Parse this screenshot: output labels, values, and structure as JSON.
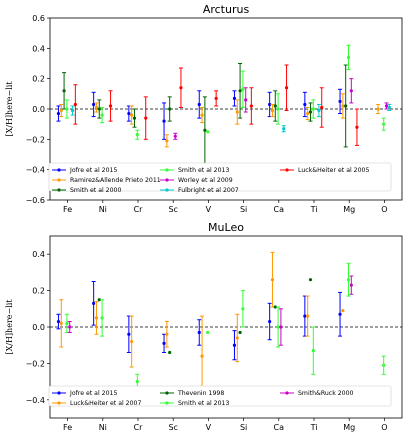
{
  "chart_data": [
    {
      "type": "scatter",
      "title": "Arcturus",
      "ylabel": "[X/H]here−lit",
      "categories": [
        "Fe",
        "Ni",
        "Cr",
        "Sc",
        "V",
        "Si",
        "Ca",
        "Ti",
        "Mg",
        "O"
      ],
      "ylim": [
        -0.6,
        0.6
      ],
      "yticks": [
        "0.6",
        "0.4",
        "0.2",
        "0.0",
        "−0.2",
        "−0.4",
        "−0.6"
      ],
      "yticks_val": [
        0.6,
        0.4,
        0.2,
        0.0,
        -0.2,
        -0.4,
        -0.6
      ],
      "reference_line": 0.0,
      "legend_position": "lower-center",
      "legend_columns": 3,
      "series": [
        {
          "name": "Jofre et al 2015",
          "color": "#0000ff",
          "points": [
            {
              "cat": 0,
              "y": -0.03,
              "err": 0.05
            },
            {
              "cat": 1,
              "y": 0.03,
              "err": 0.08
            },
            {
              "cat": 2,
              "y": -0.03,
              "err": 0.05
            },
            {
              "cat": 3,
              "y": -0.08,
              "err": 0.12
            },
            {
              "cat": 4,
              "y": 0.03,
              "err": 0.09
            },
            {
              "cat": 5,
              "y": 0.07,
              "err": 0.05
            },
            {
              "cat": 6,
              "y": 0.03,
              "err": 0.08
            },
            {
              "cat": 7,
              "y": 0.03,
              "err": 0.08
            },
            {
              "cat": 8,
              "y": 0.05,
              "err": 0.08
            }
          ]
        },
        {
          "name": "Ramirez&Allende Prieto 2011",
          "color": "#ff9900",
          "points": [
            {
              "cat": 0,
              "y": -0.01,
              "err": 0.04
            },
            {
              "cat": 1,
              "y": 0.01,
              "err": 0.03
            },
            {
              "cat": 2,
              "y": -0.04,
              "err": 0.06
            },
            {
              "cat": 3,
              "y": -0.21,
              "err": 0.04
            },
            {
              "cat": 4,
              "y": -0.04,
              "err": 0.05
            },
            {
              "cat": 5,
              "y": -0.02,
              "err": 0.08
            },
            {
              "cat": 6,
              "y": -0.01,
              "err": 0.04
            },
            {
              "cat": 7,
              "y": -0.03,
              "err": 0.04
            },
            {
              "cat": 8,
              "y": 0.02,
              "err": 0.08
            },
            {
              "cat": 9,
              "y": 0.0,
              "err": 0.03
            }
          ]
        },
        {
          "name": "Smith et al 2000",
          "color": "#006400",
          "points": [
            {
              "cat": 0,
              "y": 0.12,
              "err": 0.12
            },
            {
              "cat": 1,
              "y": 0.0,
              "err": 0.06
            },
            {
              "cat": 2,
              "y": -0.06,
              "err": 0.06
            },
            {
              "cat": 3,
              "y": 0.0,
              "err": 0.08
            },
            {
              "cat": 4,
              "y": -0.14,
              "err": 0.22
            },
            {
              "cat": 5,
              "y": 0.12,
              "err": 0.18
            },
            {
              "cat": 6,
              "y": 0.02,
              "err": 0.1
            },
            {
              "cat": 7,
              "y": -0.02,
              "err": 0.06
            },
            {
              "cat": 8,
              "y": 0.02,
              "err": 0.27
            }
          ]
        },
        {
          "name": "Smith et al 2013",
          "color": "#33ff33",
          "points": [
            {
              "cat": 0,
              "y": 0.0,
              "err": 0.06
            },
            {
              "cat": 1,
              "y": -0.04,
              "err": 0.05
            },
            {
              "cat": 2,
              "y": -0.17,
              "err": 0.03
            },
            {
              "cat": 4,
              "y": -0.15,
              "err": 0.0
            },
            {
              "cat": 5,
              "y": 0.13,
              "err": 0.12
            },
            {
              "cat": 6,
              "y": 0.0,
              "err": 0.1
            },
            {
              "cat": 7,
              "y": 0.0,
              "err": 0.06
            },
            {
              "cat": 8,
              "y": 0.34,
              "err": 0.08
            },
            {
              "cat": 9,
              "y": -0.1,
              "err": 0.04
            }
          ]
        },
        {
          "name": "Worley et al 2009",
          "color": "#cc00cc",
          "points": [
            {
              "cat": 3,
              "y": -0.18,
              "err": 0.02
            },
            {
              "cat": 5,
              "y": 0.06,
              "err": 0.08
            },
            {
              "cat": 8,
              "y": 0.12,
              "err": 0.08
            },
            {
              "cat": 9,
              "y": 0.02,
              "err": 0.02
            }
          ]
        },
        {
          "name": "Fulbright et al 2007",
          "color": "#00cccc",
          "points": [
            {
              "cat": 0,
              "y": -0.01,
              "err": 0.03
            },
            {
              "cat": 6,
              "y": -0.13,
              "err": 0.02
            },
            {
              "cat": 7,
              "y": -0.01,
              "err": 0.04
            },
            {
              "cat": 9,
              "y": 0.01,
              "err": 0.02
            }
          ]
        },
        {
          "name": "Luck&Heiter et al 2005",
          "color": "#ff0000",
          "points": [
            {
              "cat": 0,
              "y": 0.03,
              "err": 0.13
            },
            {
              "cat": 1,
              "y": 0.02,
              "err": 0.1
            },
            {
              "cat": 2,
              "y": -0.06,
              "err": 0.14
            },
            {
              "cat": 3,
              "y": 0.14,
              "err": 0.13
            },
            {
              "cat": 4,
              "y": 0.07,
              "err": 0.05
            },
            {
              "cat": 5,
              "y": 0.02,
              "err": 0.12
            },
            {
              "cat": 6,
              "y": 0.14,
              "err": 0.15
            },
            {
              "cat": 7,
              "y": 0.01,
              "err": 0.13
            },
            {
              "cat": 8,
              "y": -0.12,
              "err": 0.12
            }
          ]
        }
      ]
    },
    {
      "type": "scatter",
      "title": "MuLeo",
      "ylabel": "[X/H]here−lit",
      "categories": [
        "Fe",
        "Ni",
        "Cr",
        "Sc",
        "V",
        "Si",
        "Ca",
        "Ti",
        "Mg",
        "O"
      ],
      "ylim": [
        -0.5,
        0.5
      ],
      "yticks": [
        "0.4",
        "0.2",
        "0.0",
        "−0.2",
        "−0.4"
      ],
      "yticks_val": [
        0.4,
        0.2,
        0.0,
        -0.2,
        -0.4
      ],
      "reference_line": 0.0,
      "legend_position": "lower-center",
      "legend_columns": 3,
      "series": [
        {
          "name": "Jofre et al 2015",
          "color": "#0000ff",
          "points": [
            {
              "cat": 0,
              "y": 0.03,
              "err": 0.04
            },
            {
              "cat": 1,
              "y": 0.13,
              "err": 0.12
            },
            {
              "cat": 2,
              "y": -0.04,
              "err": 0.1
            },
            {
              "cat": 3,
              "y": -0.09,
              "err": 0.05
            },
            {
              "cat": 4,
              "y": -0.03,
              "err": 0.07
            },
            {
              "cat": 5,
              "y": -0.1,
              "err": 0.08
            },
            {
              "cat": 6,
              "y": 0.03,
              "err": 0.1
            },
            {
              "cat": 7,
              "y": 0.06,
              "err": 0.11
            },
            {
              "cat": 8,
              "y": 0.07,
              "err": 0.12
            }
          ]
        },
        {
          "name": "Luck&Heiter et al 2007",
          "color": "#ff9900",
          "points": [
            {
              "cat": 0,
              "y": 0.02,
              "err": 0.13
            },
            {
              "cat": 1,
              "y": 0.05,
              "err": 0.09
            },
            {
              "cat": 2,
              "y": -0.08,
              "err": 0.14
            },
            {
              "cat": 3,
              "y": -0.04,
              "err": 0.07
            },
            {
              "cat": 4,
              "y": -0.16,
              "err": 0.22
            },
            {
              "cat": 5,
              "y": -0.06,
              "err": 0.13
            },
            {
              "cat": 6,
              "y": 0.26,
              "err": 0.15
            },
            {
              "cat": 7,
              "y": 0.06,
              "err": 0.11
            },
            {
              "cat": 8,
              "y": 0.09,
              "err": 0.0
            }
          ]
        },
        {
          "name": "Thevenin 1998",
          "color": "#006400",
          "points": [
            {
              "cat": 1,
              "y": 0.15,
              "err": 0.0
            },
            {
              "cat": 3,
              "y": -0.14,
              "err": 0.0
            },
            {
              "cat": 5,
              "y": -0.03,
              "err": 0.0
            },
            {
              "cat": 6,
              "y": 0.11,
              "err": 0.0
            },
            {
              "cat": 7,
              "y": 0.26,
              "err": 0.0
            }
          ]
        },
        {
          "name": "Smith et al 2013",
          "color": "#33ff33",
          "points": [
            {
              "cat": 0,
              "y": 0.02,
              "err": 0.05
            },
            {
              "cat": 1,
              "y": 0.05,
              "err": 0.1
            },
            {
              "cat": 2,
              "y": -0.3,
              "err": 0.04
            },
            {
              "cat": 4,
              "y": -0.03,
              "err": 0.0
            },
            {
              "cat": 5,
              "y": 0.1,
              "err": 0.1
            },
            {
              "cat": 6,
              "y": 0.0,
              "err": 0.11
            },
            {
              "cat": 7,
              "y": -0.13,
              "err": 0.13
            },
            {
              "cat": 8,
              "y": 0.26,
              "err": 0.09
            },
            {
              "cat": 9,
              "y": -0.21,
              "err": 0.05
            }
          ]
        },
        {
          "name": "Smith&Ruck 2000",
          "color": "#cc00cc",
          "points": [
            {
              "cat": 0,
              "y": 0.0,
              "err": 0.03
            },
            {
              "cat": 6,
              "y": 0.0,
              "err": 0.1
            },
            {
              "cat": 8,
              "y": 0.23,
              "err": 0.05
            }
          ]
        }
      ]
    }
  ]
}
